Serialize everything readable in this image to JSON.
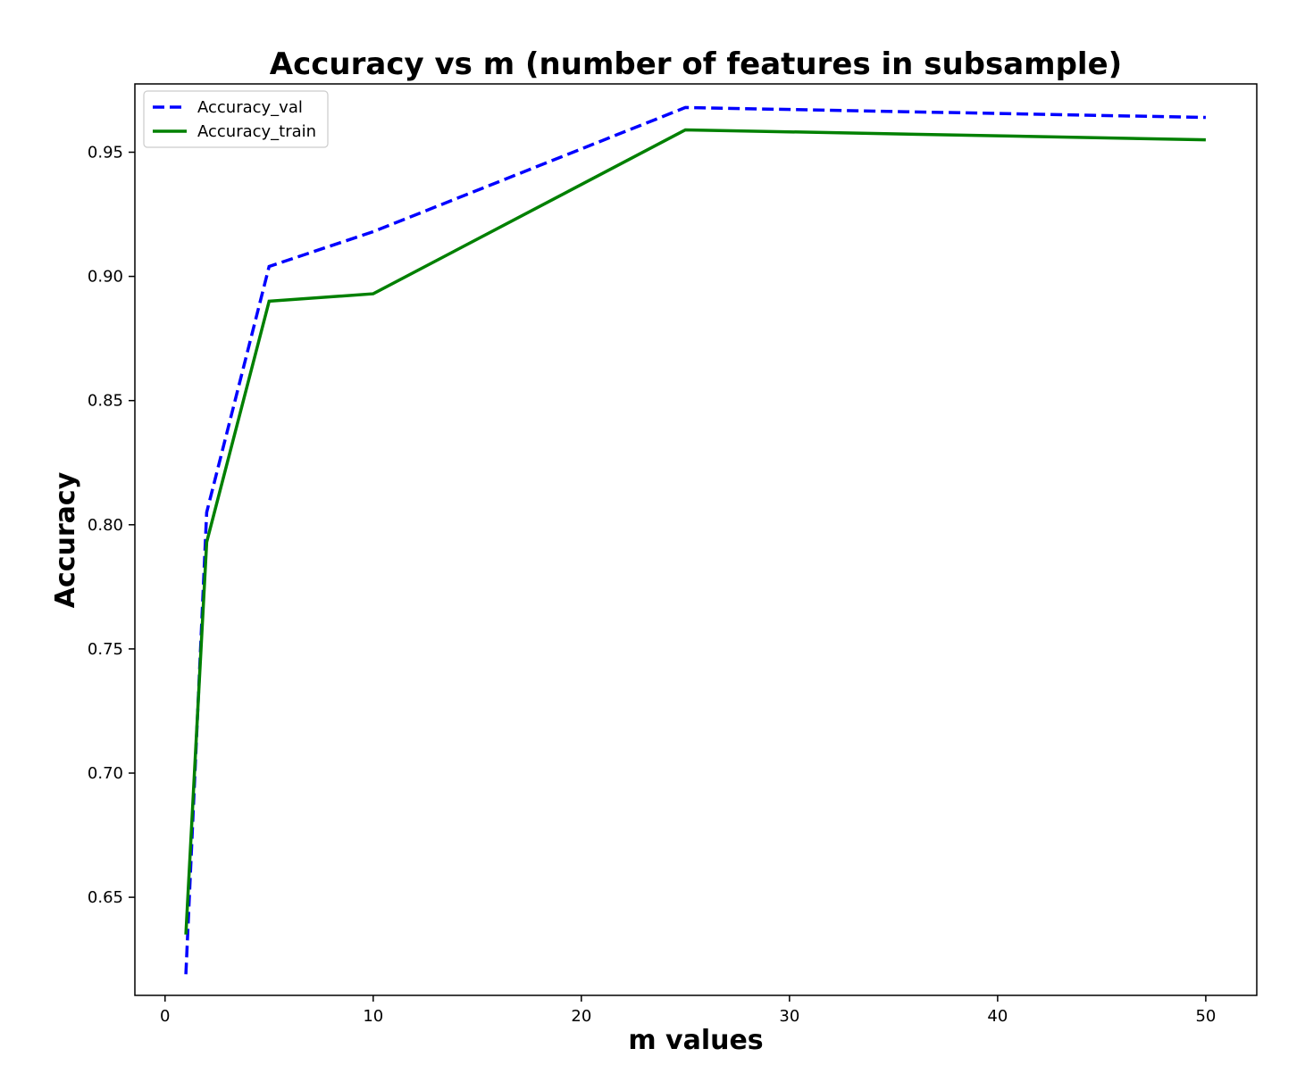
{
  "chart_data": {
    "type": "line",
    "title": "Accuracy vs m (number of features in subsample)",
    "xlabel": "m values",
    "ylabel": "Accuracy",
    "xlim": [
      -1.45,
      52.45
    ],
    "ylim": [
      0.6105,
      0.9775
    ],
    "xticks": [
      0,
      10,
      20,
      30,
      40,
      50
    ],
    "xtick_labels": [
      "0",
      "10",
      "20",
      "30",
      "40",
      "50"
    ],
    "yticks": [
      0.65,
      0.7,
      0.75,
      0.8,
      0.85,
      0.9,
      0.95
    ],
    "ytick_labels": [
      "0.65",
      "0.70",
      "0.75",
      "0.80",
      "0.85",
      "0.90",
      "0.95"
    ],
    "grid": false,
    "legend_position": "upper-left",
    "x": [
      1,
      2,
      5,
      10,
      25,
      50
    ],
    "series": [
      {
        "name": "Accuracy_val",
        "values": [
          0.619,
          0.805,
          0.904,
          0.918,
          0.968,
          0.964
        ],
        "color": "#0000ff",
        "style": "dashed"
      },
      {
        "name": "Accuracy_train",
        "values": [
          0.635,
          0.793,
          0.89,
          0.893,
          0.959,
          0.955
        ],
        "color": "#008000",
        "style": "solid"
      }
    ]
  }
}
